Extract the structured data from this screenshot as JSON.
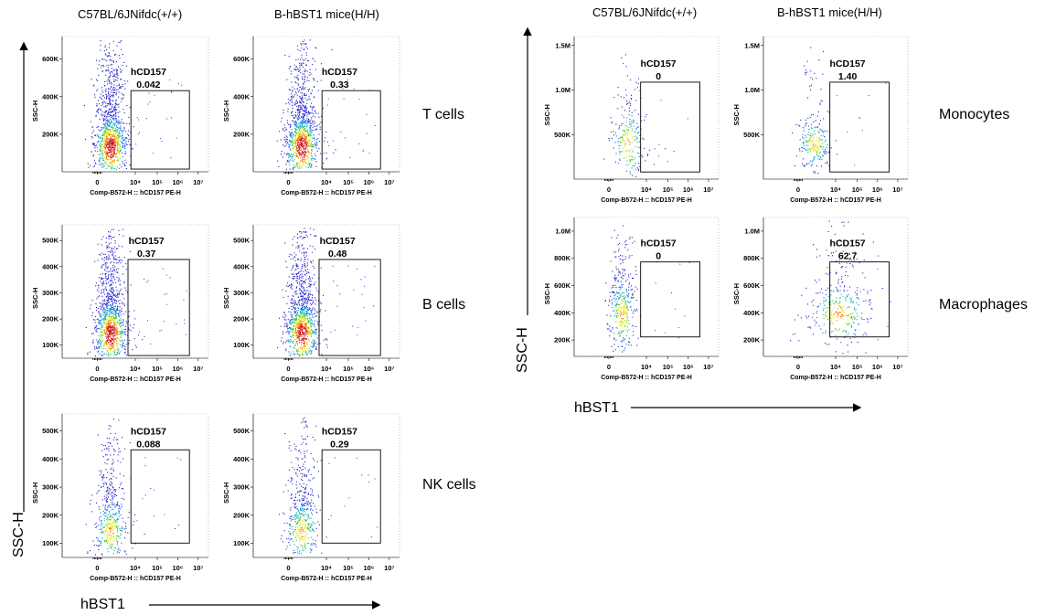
{
  "chart_data": {
    "type": "scatter",
    "description_axis": {
      "x_label": "Comp-B572-H :: hCD157 PE-H",
      "y_label": "SSC-H"
    },
    "left_figure": {
      "columns": [
        "C57BL/6JNifdc(+/+)",
        "B-hBST1 mice(H/H)"
      ],
      "big_y_label": "SSC-H",
      "big_x_label": "hBST1",
      "rows": [
        {
          "name": "T cells",
          "y_ticks": [
            "200K",
            "400K",
            "600K"
          ],
          "y_tick_values": [
            200,
            400,
            600
          ],
          "ylim": [
            0,
            720
          ],
          "x_ticks": [
            "0",
            "10⁴",
            "10⁵",
            "10⁶",
            "10⁷"
          ],
          "panels": [
            {
              "gate": "hCD157",
              "value": "0.042"
            },
            {
              "gate": "hCD157",
              "value": "0.33"
            }
          ]
        },
        {
          "name": "B cells",
          "y_ticks": [
            "100K",
            "200K",
            "300K",
            "400K",
            "500K"
          ],
          "y_tick_values": [
            100,
            200,
            300,
            400,
            500
          ],
          "ylim": [
            50,
            560
          ],
          "x_ticks": [
            "0",
            "10⁴",
            "10⁵",
            "10⁶",
            "10⁷"
          ],
          "panels": [
            {
              "gate": "hCD157",
              "value": "0.37"
            },
            {
              "gate": "hCD157",
              "value": "0.48"
            }
          ]
        },
        {
          "name": "NK cells",
          "y_ticks": [
            "100K",
            "200K",
            "300K",
            "400K",
            "500K"
          ],
          "y_tick_values": [
            100,
            200,
            300,
            400,
            500
          ],
          "ylim": [
            50,
            560
          ],
          "x_ticks": [
            "0",
            "10⁴",
            "10⁵",
            "10⁶",
            "10⁷"
          ],
          "panels": [
            {
              "gate": "hCD157",
              "value": "0.088"
            },
            {
              "gate": "hCD157",
              "value": "0.29"
            }
          ]
        }
      ]
    },
    "right_figure": {
      "columns": [
        "C57BL/6JNifdc(+/+)",
        "B-hBST1 mice(H/H)"
      ],
      "big_y_label": "SSC-H",
      "big_x_label": "hBST1",
      "rows": [
        {
          "name": "Monocytes",
          "y_ticks": [
            "500K",
            "1.0M",
            "1.5M"
          ],
          "y_tick_values": [
            500,
            1000,
            1500
          ],
          "ylim": [
            0,
            1600
          ],
          "x_ticks": [
            "0",
            "10⁴",
            "10⁵",
            "10⁶",
            "10⁷"
          ],
          "panels": [
            {
              "gate": "hCD157",
              "value": "0"
            },
            {
              "gate": "hCD157",
              "value": "1.40"
            }
          ]
        },
        {
          "name": "Macrophages",
          "y_ticks": [
            "200K",
            "400K",
            "600K",
            "800K",
            "1.0M"
          ],
          "y_tick_values": [
            200,
            400,
            600,
            800,
            1000
          ],
          "ylim": [
            80,
            1100
          ],
          "x_ticks": [
            "0",
            "10⁴",
            "10⁵",
            "10⁶",
            "10⁷"
          ],
          "panels": [
            {
              "gate": "hCD157",
              "value": "0"
            },
            {
              "gate": "hCD157",
              "value": "62.7"
            }
          ]
        }
      ]
    }
  }
}
